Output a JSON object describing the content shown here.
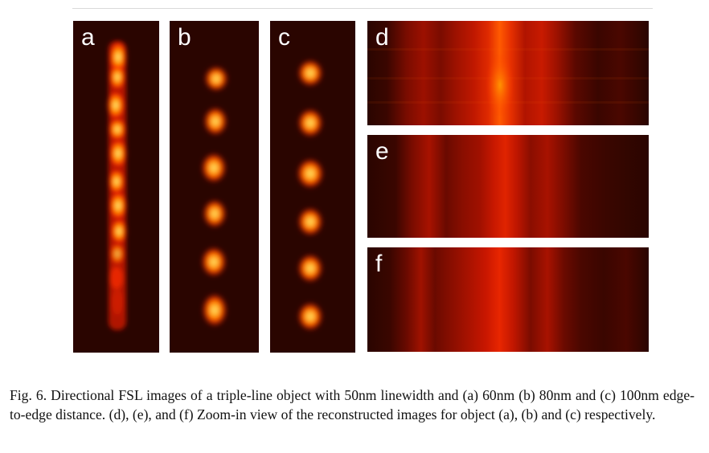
{
  "figure": {
    "panels": [
      {
        "id": "a",
        "label": "a"
      },
      {
        "id": "b",
        "label": "b"
      },
      {
        "id": "c",
        "label": "c"
      },
      {
        "id": "d",
        "label": "d"
      },
      {
        "id": "e",
        "label": "e"
      },
      {
        "id": "f",
        "label": "f"
      }
    ],
    "caption": "Fig. 6. Directional FSL images of a triple-line object with 50nm linewidth and (a) 60nm (b) 80nm and (c) 100nm edge-to-edge distance. (d), (e), and (f) Zoom-in view of the reconstructed images for object (a), (b) and (c) respectively.",
    "colors": {
      "background_dark": "#2a0500",
      "glow_hot": "#ffe070",
      "glow_mid": "#ff2a00",
      "stripe_red": "#c80c00"
    }
  }
}
